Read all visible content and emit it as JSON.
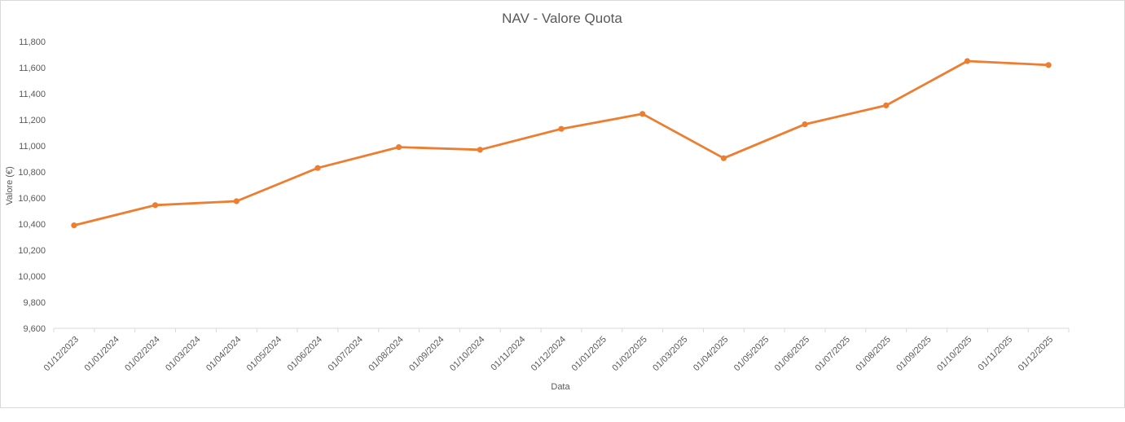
{
  "chart_data": {
    "type": "line",
    "title": "NAV - Valore Quota",
    "xlabel": "Data",
    "ylabel": "Valore (€)",
    "ylim": [
      9.6,
      11.8
    ],
    "ytick_values": [
      9.6,
      9.8,
      10.0,
      10.2,
      10.4,
      10.6,
      10.8,
      11.0,
      11.2,
      11.4,
      11.6,
      11.8
    ],
    "ytick_labels": [
      "9,600",
      "9,800",
      "10,000",
      "10,200",
      "10,400",
      "10,600",
      "10,800",
      "11,000",
      "11,200",
      "11,400",
      "11,600",
      "11,800"
    ],
    "xtick_labels": [
      "01/12/2023",
      "01/01/2024",
      "01/02/2024",
      "01/03/2024",
      "01/04/2024",
      "01/05/2024",
      "01/06/2024",
      "01/07/2024",
      "01/08/2024",
      "01/09/2024",
      "01/10/2024",
      "01/11/2024",
      "01/12/2024",
      "01/01/2025",
      "01/02/2025",
      "01/03/2025",
      "01/04/2025",
      "01/05/2025",
      "01/06/2025",
      "01/07/2025",
      "01/08/2025",
      "01/09/2025",
      "01/10/2025",
      "01/11/2025",
      "01/12/2025"
    ],
    "grid": false,
    "line_color": "#ED7D31",
    "series": [
      {
        "x": [
          "01/12/2023",
          "01/02/2024",
          "01/04/2024",
          "01/06/2024",
          "01/08/2024",
          "01/10/2024",
          "01/12/2024",
          "01/02/2025",
          "01/04/2025",
          "01/06/2025",
          "01/08/2025",
          "01/10/2025",
          "01/12/2025"
        ],
        "values": [
          10.39,
          10.545,
          10.575,
          10.83,
          10.99,
          10.97,
          11.13,
          11.245,
          10.905,
          11.165,
          11.31,
          11.65,
          11.62
        ]
      }
    ]
  }
}
